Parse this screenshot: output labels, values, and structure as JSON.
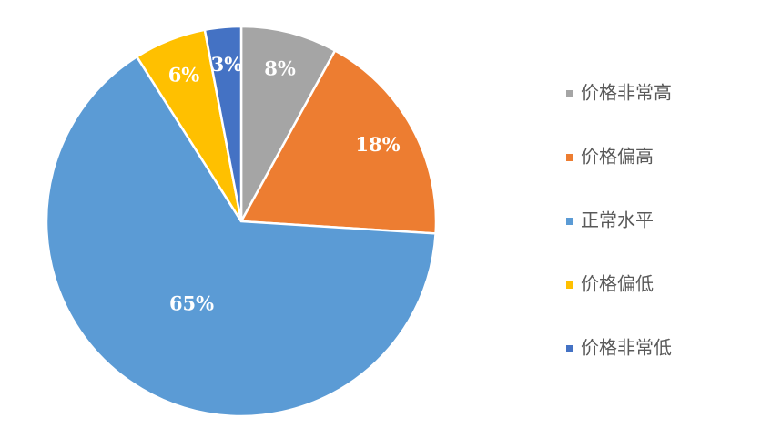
{
  "chart_data": {
    "type": "pie",
    "categories": [
      "价格非常高",
      "价格偏高",
      "正常水平",
      "价格偏低",
      "价格非常低"
    ],
    "values": [
      8,
      18,
      65,
      6,
      3
    ],
    "value_labels": [
      "8%",
      "18%",
      "65%",
      "6%",
      "3%"
    ],
    "colors": [
      "#a5a5a5",
      "#ed7d31",
      "#5b9bd5",
      "#ffc000",
      "#4472c4"
    ],
    "legend": "right"
  }
}
